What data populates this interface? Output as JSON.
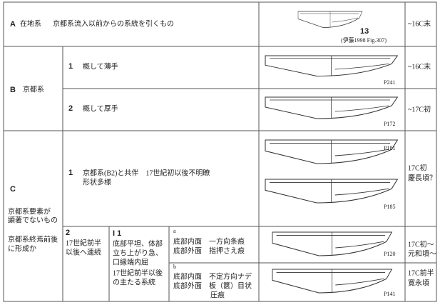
{
  "rows": {
    "A": {
      "letter": "A",
      "label": "在地系",
      "description": "京都系流入以前からの系統を引くもの",
      "figure_number": "13",
      "figure_source": "(伊藤1998 Fig.307)",
      "period": "~16C末"
    },
    "B": {
      "letter": "B",
      "label": "京都系",
      "subs": [
        {
          "number": "1",
          "description": "概して薄手",
          "figure": "P241",
          "period": "~16C末"
        },
        {
          "number": "2",
          "description": "概して厚手",
          "figure": "P172",
          "period": "~17C初"
        }
      ]
    },
    "C": {
      "letter": "C",
      "notes": [
        "京都系要素が",
        "顕著でないもの",
        "京都系終焉前後",
        "に形成か"
      ],
      "sub1": {
        "number": "1",
        "lines": [
          "京都系(B2)と共伴　17世紀初以後不明瞭",
          "形状多様"
        ],
        "figures": [
          "P181",
          "P185"
        ],
        "period": [
          "17C初",
          "慶長頃？"
        ]
      },
      "sub2": {
        "number": "2",
        "lines": [
          "17世紀前半",
          "以後へ連続"
        ],
        "type": "I 1",
        "type_lines": [
          "底部平坦、体部",
          "立ち上がり急、",
          "口縁端内屈",
          "17世紀前半以後",
          "の主たる系統"
        ],
        "variants": [
          {
            "letter": "a",
            "lines": [
              "底部内面　一方向条痕",
              "底部外面　指押さえ痕"
            ],
            "figure": "P120",
            "period": [
              "17C初～",
              "元和頃～"
            ]
          },
          {
            "letter": "b",
            "lines": [
              "底部内面　不定方向ナデ",
              "底部外面　板（篋）目状",
              "圧痕"
            ],
            "figure": "P141",
            "period": [
              "17C前半",
              "寛永頃"
            ]
          }
        ]
      }
    }
  }
}
